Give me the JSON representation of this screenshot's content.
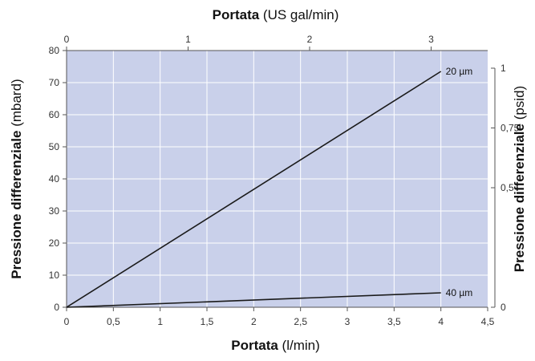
{
  "colors": {
    "plot_background": "#c9d0ea",
    "gridline": "#ffffff",
    "line": "#1a1a1a",
    "axis": "#555555"
  },
  "chart_data": {
    "type": "line",
    "grid": true,
    "x_bottom": {
      "label_bold": "Portata",
      "label_unit": " (l/min)",
      "range": [
        0,
        4.5
      ],
      "ticks": [
        0,
        0.5,
        1,
        1.5,
        2,
        2.5,
        3,
        3.5,
        4,
        4.5
      ],
      "tick_labels": [
        "0",
        "0,5",
        "1",
        "1,5",
        "2",
        "2,5",
        "3",
        "3,5",
        "4",
        "4,5"
      ]
    },
    "x_top": {
      "label_bold": "Portata",
      "label_unit": " (US gal/min)",
      "ticks": [
        0,
        1,
        2,
        3
      ],
      "tick_labels": [
        "0",
        "1",
        "2",
        "3"
      ]
    },
    "y_left": {
      "label_bold": "Pressione differenziale",
      "label_unit": " (mbard)",
      "range": [
        0,
        80
      ],
      "ticks": [
        0,
        10,
        20,
        30,
        40,
        50,
        60,
        70,
        80
      ],
      "tick_labels": [
        "0",
        "10",
        "20",
        "30",
        "40",
        "50",
        "60",
        "70",
        "80"
      ]
    },
    "y_right": {
      "label_bold": "Pressione differenziale",
      "label_unit": " (psid)",
      "ticks": [
        0,
        0.5,
        0.75,
        1
      ],
      "tick_labels": [
        "0",
        "0,5",
        "0,75",
        "1"
      ]
    },
    "series": [
      {
        "name": "20 µm",
        "x": [
          0,
          4
        ],
        "y": [
          0,
          73.5
        ]
      },
      {
        "name": "40 µm",
        "x": [
          0,
          4
        ],
        "y": [
          0,
          4.5
        ]
      }
    ]
  }
}
